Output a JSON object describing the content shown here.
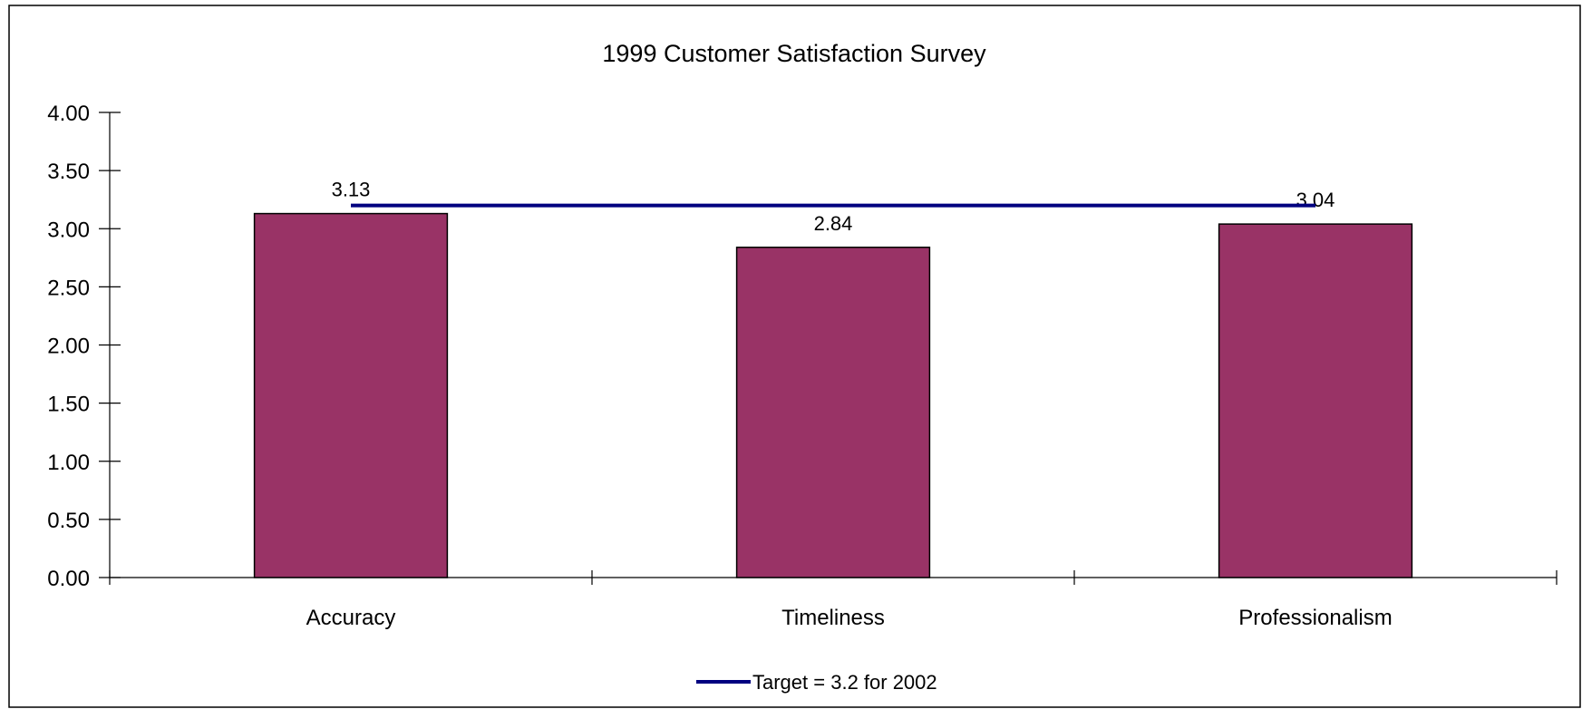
{
  "chart_data": {
    "type": "bar",
    "title": "1999 Customer Satisfaction Survey",
    "categories": [
      "Accuracy",
      "Timeliness",
      "Professionalism"
    ],
    "values": [
      3.13,
      2.84,
      3.04
    ],
    "data_labels": [
      "3.13",
      "2.84",
      "3.04"
    ],
    "y_ticks": [
      "0.00",
      "0.50",
      "1.00",
      "1.50",
      "2.00",
      "2.50",
      "3.00",
      "3.50",
      "4.00"
    ],
    "ylim": [
      0,
      4
    ],
    "xlabel": "",
    "ylabel": "",
    "grid": false,
    "target_line": {
      "name": "Target = 3.2 for 2002",
      "value": 3.2
    },
    "legend": {
      "position": "bottom",
      "entries": [
        "Target = 3.2 for 2002"
      ]
    },
    "colors": {
      "bar": "#993366",
      "bar_edge": "#000000",
      "target": "#000080"
    }
  }
}
